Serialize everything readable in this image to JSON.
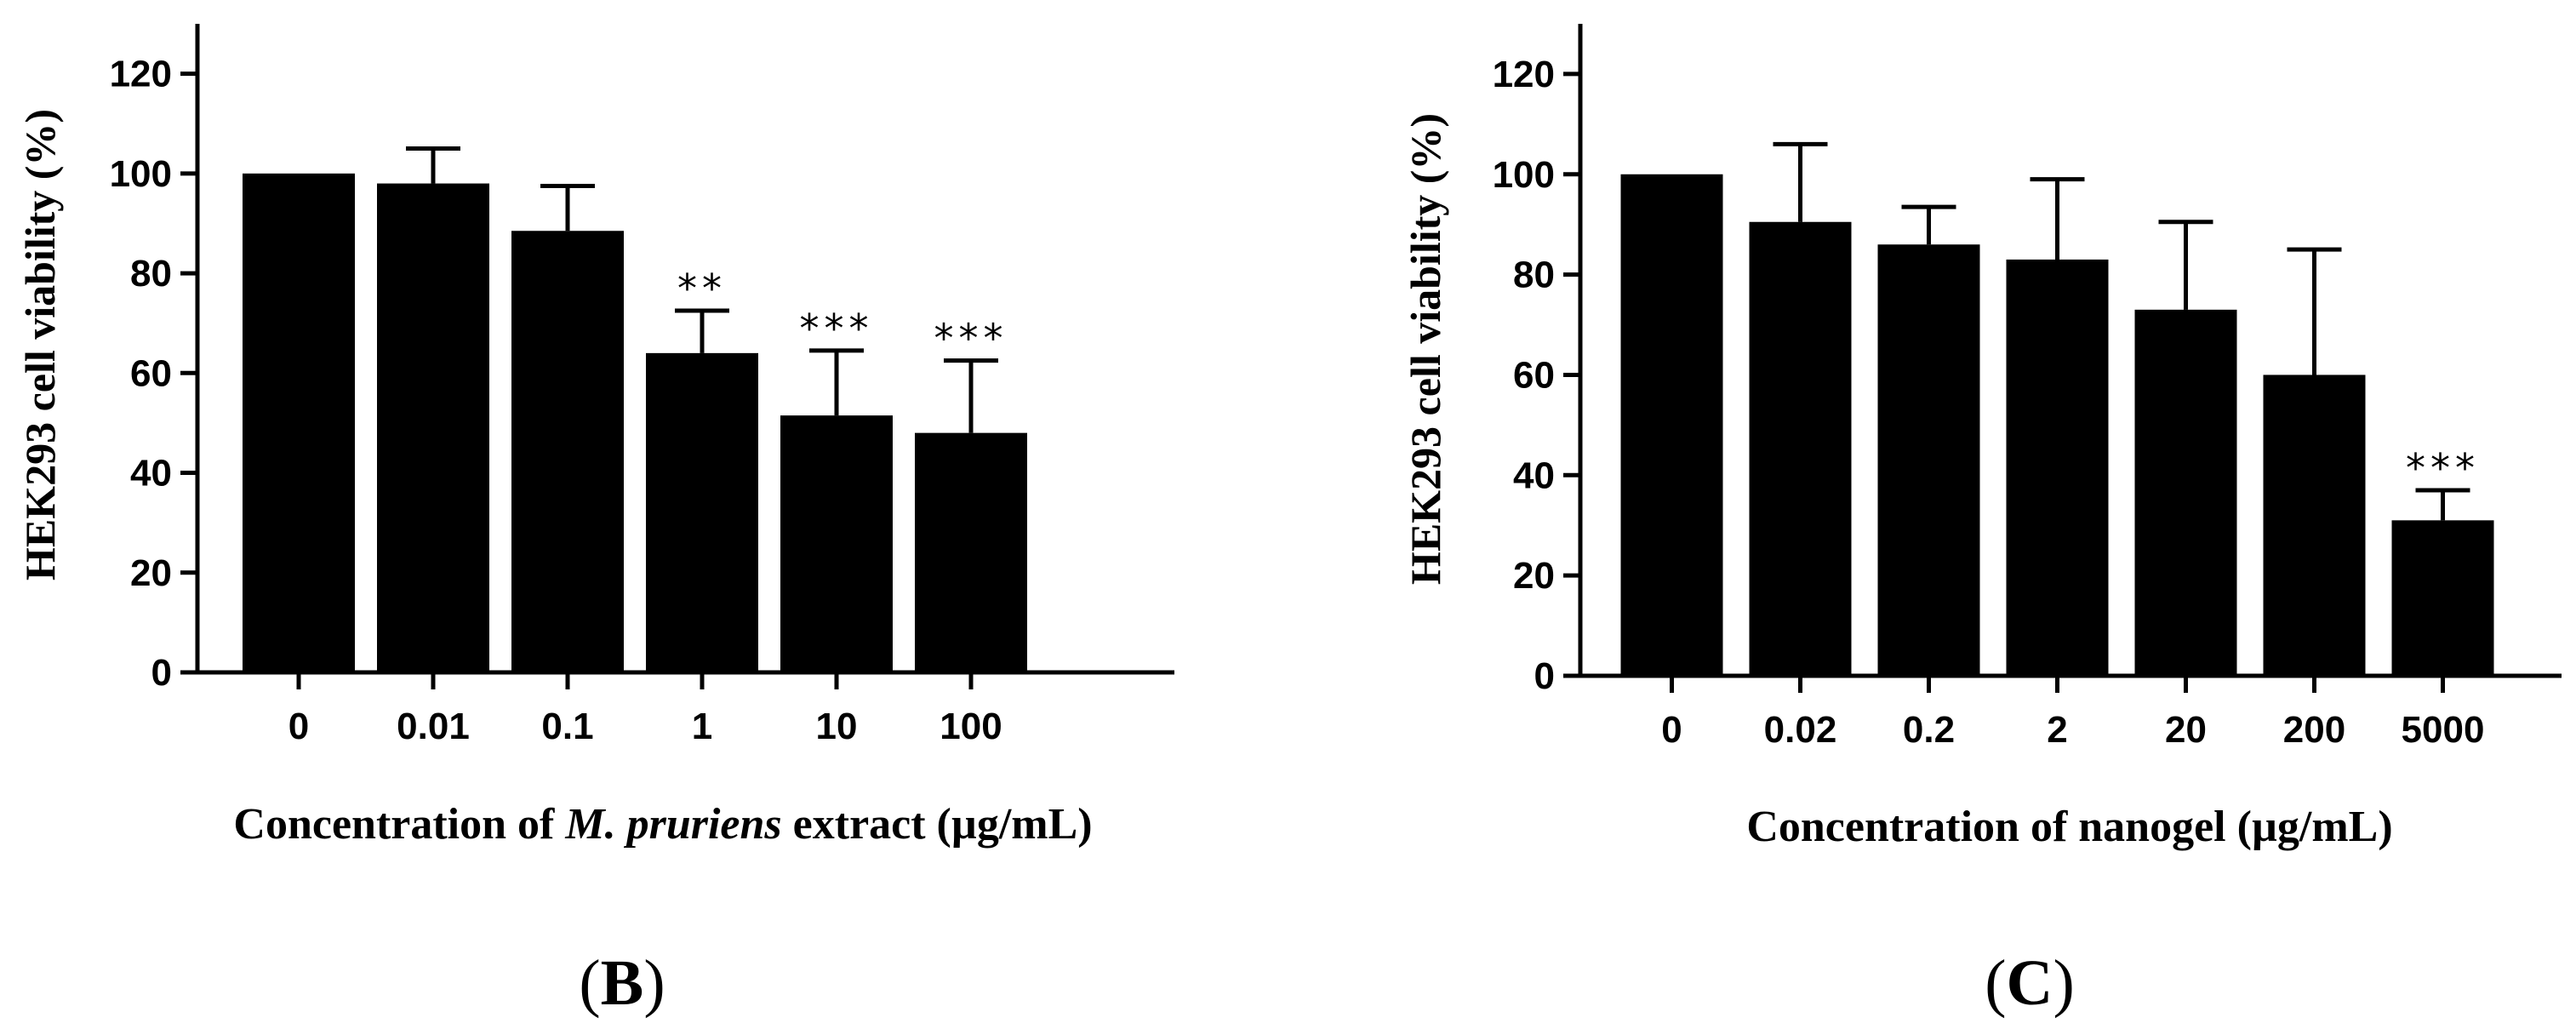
{
  "chart_data": [
    {
      "type": "bar",
      "panel_label": "B",
      "title": "",
      "xlabel_parts": [
        "Concentration of ",
        "M. pruriens",
        " extract (µg/mL)"
      ],
      "ylabel": "HEK293 cell viability (%)",
      "categories": [
        "0",
        "0.01",
        "0.1",
        "1",
        "10",
        "100"
      ],
      "values": [
        100,
        98,
        88.5,
        64,
        51.5,
        48
      ],
      "errors": [
        0,
        7,
        9,
        8.5,
        13,
        14.5
      ],
      "significance": [
        "",
        "",
        "",
        "**",
        "***",
        "***"
      ],
      "ylim": [
        0,
        130
      ],
      "yticks": [
        0,
        20,
        40,
        60,
        80,
        100,
        120
      ],
      "bar_color": "#000000"
    },
    {
      "type": "bar",
      "panel_label": "C",
      "title": "",
      "xlabel_parts": [
        "Concentration of nanogel (µg/mL)"
      ],
      "ylabel": "HEK293 cell viability (%)",
      "categories": [
        "0",
        "0.02",
        "0.2",
        "2",
        "20",
        "200",
        "5000"
      ],
      "values": [
        100,
        90.5,
        86,
        83,
        73,
        60,
        31
      ],
      "errors": [
        0,
        15.5,
        7.5,
        16,
        17.5,
        25,
        6
      ],
      "significance": [
        "",
        "",
        "",
        "",
        "",
        "",
        "***"
      ],
      "ylim": [
        0,
        130
      ],
      "yticks": [
        0,
        20,
        40,
        60,
        80,
        100,
        120
      ],
      "bar_color": "#000000"
    }
  ]
}
